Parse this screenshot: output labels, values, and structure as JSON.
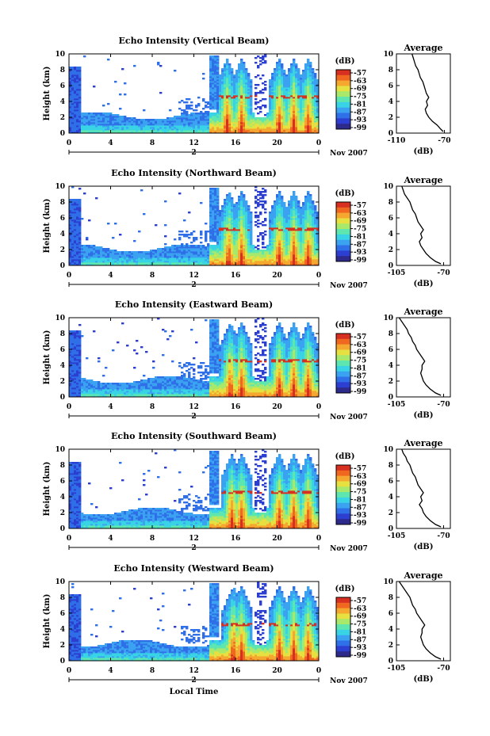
{
  "chart_data": [
    {
      "type": "heatmap",
      "title": "Echo Intensity (Vertical Beam)",
      "ylabel": "Height (km)",
      "xlabel": "",
      "x_ticks": [
        "0",
        "4",
        "8",
        "12",
        "16",
        "20",
        "0"
      ],
      "y_ticks": [
        "0",
        "2",
        "4",
        "6",
        "8",
        "10"
      ],
      "xlim": [
        0,
        24
      ],
      "ylim": [
        0,
        10
      ],
      "date_mid": "2",
      "date_label": "Nov 2007",
      "colorbar": {
        "unit": "(dB)",
        "ticks": [
          "-57",
          "-63",
          "-69",
          "-75",
          "-81",
          "-87",
          "-93",
          "-99"
        ]
      },
      "profile": {
        "title": "Average",
        "xlabel": "(dB)",
        "x_ticks": [
          "-110",
          "-70"
        ],
        "xlim": [
          -110,
          -65
        ],
        "points": [
          [
            -97,
            10
          ],
          [
            -96,
            9.5
          ],
          [
            -95,
            9
          ],
          [
            -94,
            8.5
          ],
          [
            -92,
            8
          ],
          [
            -91,
            7.5
          ],
          [
            -90,
            7
          ],
          [
            -88,
            6.5
          ],
          [
            -87,
            6
          ],
          [
            -86,
            5.5
          ],
          [
            -85,
            5
          ],
          [
            -83,
            4.5
          ],
          [
            -85,
            4
          ],
          [
            -84,
            3.5
          ],
          [
            -86,
            3
          ],
          [
            -85,
            2.5
          ],
          [
            -83,
            2
          ],
          [
            -80,
            1.5
          ],
          [
            -76,
            1
          ],
          [
            -73,
            0.5
          ],
          [
            -71,
            0.2
          ]
        ]
      }
    },
    {
      "type": "heatmap",
      "title": "Echo Intensity (Northward Beam)",
      "ylabel": "Height (km)",
      "xlabel": "",
      "x_ticks": [
        "0",
        "4",
        "8",
        "12",
        "16",
        "20",
        "0"
      ],
      "y_ticks": [
        "0",
        "2",
        "4",
        "6",
        "8",
        "10"
      ],
      "xlim": [
        0,
        24
      ],
      "ylim": [
        0,
        10
      ],
      "date_mid": "2",
      "date_label": "Nov 2007",
      "colorbar": {
        "unit": "(dB)",
        "ticks": [
          "-57",
          "-63",
          "-69",
          "-75",
          "-81",
          "-87",
          "-93",
          "-99"
        ]
      },
      "profile": {
        "title": "Average",
        "xlabel": "(dB)",
        "x_ticks": [
          "-105",
          "-70"
        ],
        "xlim": [
          -105,
          -65
        ],
        "points": [
          [
            -101,
            10
          ],
          [
            -100,
            9.5
          ],
          [
            -99,
            9
          ],
          [
            -97,
            8.5
          ],
          [
            -95,
            8
          ],
          [
            -94,
            7.5
          ],
          [
            -93,
            7
          ],
          [
            -91,
            6.5
          ],
          [
            -90,
            6
          ],
          [
            -89,
            5.5
          ],
          [
            -87,
            5
          ],
          [
            -85,
            4.5
          ],
          [
            -87,
            4
          ],
          [
            -86,
            3.5
          ],
          [
            -88,
            3
          ],
          [
            -87,
            2.5
          ],
          [
            -85,
            2
          ],
          [
            -83,
            1.5
          ],
          [
            -80,
            1
          ],
          [
            -76,
            0.5
          ],
          [
            -72,
            0.2
          ]
        ]
      }
    },
    {
      "type": "heatmap",
      "title": "Echo Intensity (Eastward Beam)",
      "ylabel": "Height (km)",
      "xlabel": "",
      "x_ticks": [
        "0",
        "4",
        "8",
        "12",
        "16",
        "20",
        "0"
      ],
      "y_ticks": [
        "0",
        "2",
        "4",
        "6",
        "8",
        "10"
      ],
      "xlim": [
        0,
        24
      ],
      "ylim": [
        0,
        10
      ],
      "date_mid": "2",
      "date_label": "Nov 2007",
      "colorbar": {
        "unit": "(dB)",
        "ticks": [
          "-57",
          "-63",
          "-69",
          "-75",
          "-81",
          "-87",
          "-93",
          "-99"
        ]
      },
      "profile": {
        "title": "Average",
        "xlabel": "(dB)",
        "x_ticks": [
          "-105",
          "-70"
        ],
        "xlim": [
          -105,
          -65
        ],
        "points": [
          [
            -103,
            10
          ],
          [
            -101,
            9.5
          ],
          [
            -99,
            9
          ],
          [
            -97,
            8.5
          ],
          [
            -96,
            8
          ],
          [
            -94,
            7.5
          ],
          [
            -93,
            7
          ],
          [
            -91,
            6.5
          ],
          [
            -90,
            6
          ],
          [
            -88,
            5.5
          ],
          [
            -86,
            5
          ],
          [
            -84,
            4.5
          ],
          [
            -86,
            4
          ],
          [
            -86,
            3.5
          ],
          [
            -87,
            3
          ],
          [
            -86,
            2.5
          ],
          [
            -85,
            2
          ],
          [
            -83,
            1.5
          ],
          [
            -80,
            1
          ],
          [
            -76,
            0.5
          ],
          [
            -72,
            0.2
          ]
        ]
      }
    },
    {
      "type": "heatmap",
      "title": "Echo Intensity (Southward Beam)",
      "ylabel": "Height (km)",
      "xlabel": "",
      "x_ticks": [
        "0",
        "4",
        "8",
        "12",
        "16",
        "20",
        "0"
      ],
      "y_ticks": [
        "0",
        "2",
        "4",
        "6",
        "8",
        "10"
      ],
      "xlim": [
        0,
        24
      ],
      "ylim": [
        0,
        10
      ],
      "date_mid": "2",
      "date_label": "Nov 2007",
      "colorbar": {
        "unit": "(dB)",
        "ticks": [
          "-57",
          "-63",
          "-69",
          "-75",
          "-81",
          "-87",
          "-93",
          "-99"
        ]
      },
      "profile": {
        "title": "Average",
        "xlabel": "(dB)",
        "x_ticks": [
          "-105",
          "-70"
        ],
        "xlim": [
          -105,
          -65
        ],
        "points": [
          [
            -101,
            10
          ],
          [
            -100,
            9.5
          ],
          [
            -98,
            9
          ],
          [
            -97,
            8.5
          ],
          [
            -95,
            8
          ],
          [
            -94,
            7.5
          ],
          [
            -93,
            7
          ],
          [
            -91,
            6.5
          ],
          [
            -90,
            6
          ],
          [
            -89,
            5.5
          ],
          [
            -87,
            5
          ],
          [
            -85,
            4.5
          ],
          [
            -87,
            4
          ],
          [
            -86,
            3.5
          ],
          [
            -88,
            3
          ],
          [
            -86,
            2.5
          ],
          [
            -85,
            2
          ],
          [
            -83,
            1.5
          ],
          [
            -80,
            1
          ],
          [
            -76,
            0.5
          ],
          [
            -72,
            0.2
          ]
        ]
      }
    },
    {
      "type": "heatmap",
      "title": "Echo Intensity (Westward Beam)",
      "ylabel": "Height (km)",
      "xlabel": "Local Time",
      "x_ticks": [
        "0",
        "4",
        "8",
        "12",
        "16",
        "20",
        "0"
      ],
      "y_ticks": [
        "0",
        "2",
        "4",
        "6",
        "8",
        "10"
      ],
      "xlim": [
        0,
        24
      ],
      "ylim": [
        0,
        10
      ],
      "date_mid": "2",
      "date_label": "Nov 2007",
      "colorbar": {
        "unit": "(dB)",
        "ticks": [
          "-57",
          "-63",
          "-69",
          "-75",
          "-81",
          "-87",
          "-93",
          "-99"
        ]
      },
      "profile": {
        "title": "Average",
        "xlabel": "(dB)",
        "x_ticks": [
          "-105",
          "-70"
        ],
        "xlim": [
          -105,
          -65
        ],
        "points": [
          [
            -103,
            10
          ],
          [
            -101,
            9.5
          ],
          [
            -99,
            9
          ],
          [
            -97,
            8.5
          ],
          [
            -95,
            8
          ],
          [
            -94,
            7.5
          ],
          [
            -93,
            7
          ],
          [
            -91,
            6.5
          ],
          [
            -90,
            6
          ],
          [
            -88,
            5.5
          ],
          [
            -86,
            5
          ],
          [
            -84,
            4.5
          ],
          [
            -86,
            4
          ],
          [
            -86,
            3.5
          ],
          [
            -87,
            3
          ],
          [
            -86,
            2.5
          ],
          [
            -85,
            2
          ],
          [
            -83,
            1.5
          ],
          [
            -80,
            1
          ],
          [
            -76,
            0.5
          ],
          [
            -72,
            0.2
          ]
        ]
      }
    }
  ],
  "colors": {
    "jet": [
      "#2d2a8c",
      "#2d3fd0",
      "#2f6fe8",
      "#3aa2f0",
      "#38d4e6",
      "#5ee6b0",
      "#a8e86a",
      "#e6e040",
      "#f5a830",
      "#f06820",
      "#d83020"
    ]
  }
}
